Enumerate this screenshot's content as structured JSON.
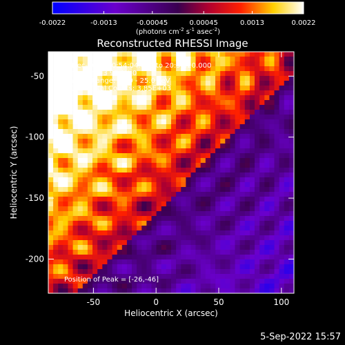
{
  "colorbar": {
    "min": -0.0022,
    "max": 0.0022,
    "tick_labels": [
      "-0.0022",
      "-0.0013",
      "-0.00045",
      "0.00045",
      "0.0013",
      "0.0022"
    ],
    "tick_values": [
      -0.0022,
      -0.0013,
      -0.00045,
      0.00045,
      0.0013,
      0.0022
    ],
    "label_main": "(photons cm",
    "label_sup1": "-2",
    "label_mid1": " s",
    "label_sup2": "-1",
    "label_mid2": " asec",
    "label_sup3": "-2",
    "label_end": ")"
  },
  "annotation": {
    "line1": "3-Dec-2018 20:54:04.000 to 20:58:20.000",
    "line2": "Detectors: 3 9F Att 0",
    "line3": "Energy Range: 12.0 - 25.0 keV",
    "line4": "CLEAN  Total Counts: 3.85E+03",
    "peak": "Position of Peak = [-26,-46]"
  },
  "timestamp": "5-Sep-2022 15:57",
  "chart_data": {
    "type": "heatmap",
    "title": "Reconstructed RHESSI Image",
    "xlabel": "Heliocentric X (arcsec)",
    "ylabel": "Heliocentric Y (arcsec)",
    "xlim": [
      -86,
      110
    ],
    "ylim": [
      -228,
      -30
    ],
    "xticks": [
      -50,
      0,
      50,
      100
    ],
    "yticks": [
      -50,
      -100,
      -150,
      -200
    ],
    "colormap": "blue-purple-red-yellow-white",
    "peak_position": [
      -26,
      -46
    ],
    "pattern": "bright (red/yellow) ring pattern upper-left, dim purple/blue ring pattern lower-right",
    "grid": false
  }
}
